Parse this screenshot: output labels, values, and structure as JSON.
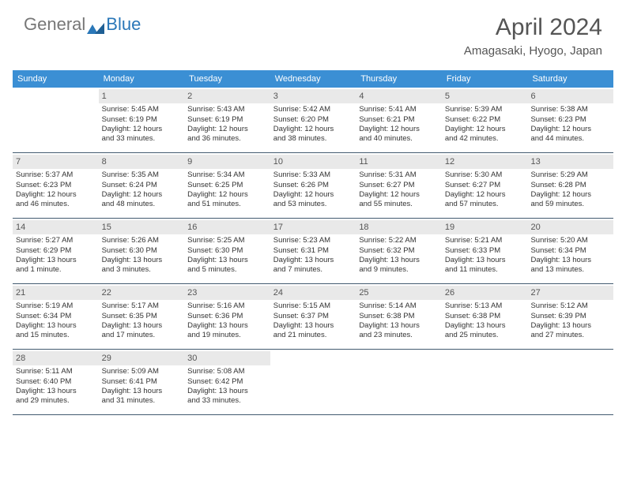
{
  "logo": {
    "part1": "General",
    "part2": "Blue"
  },
  "title": "April 2024",
  "location": "Amagasaki, Hyogo, Japan",
  "colors": {
    "header_bg": "#3b8fd4",
    "daynum_bg": "#e9e9e9",
    "row_border": "#425a70",
    "logo_accent": "#2a77b8"
  },
  "dow": [
    "Sunday",
    "Monday",
    "Tuesday",
    "Wednesday",
    "Thursday",
    "Friday",
    "Saturday"
  ],
  "weeks": [
    [
      null,
      {
        "n": "1",
        "sr": "Sunrise: 5:45 AM",
        "ss": "Sunset: 6:19 PM",
        "d1": "Daylight: 12 hours",
        "d2": "and 33 minutes."
      },
      {
        "n": "2",
        "sr": "Sunrise: 5:43 AM",
        "ss": "Sunset: 6:19 PM",
        "d1": "Daylight: 12 hours",
        "d2": "and 36 minutes."
      },
      {
        "n": "3",
        "sr": "Sunrise: 5:42 AM",
        "ss": "Sunset: 6:20 PM",
        "d1": "Daylight: 12 hours",
        "d2": "and 38 minutes."
      },
      {
        "n": "4",
        "sr": "Sunrise: 5:41 AM",
        "ss": "Sunset: 6:21 PM",
        "d1": "Daylight: 12 hours",
        "d2": "and 40 minutes."
      },
      {
        "n": "5",
        "sr": "Sunrise: 5:39 AM",
        "ss": "Sunset: 6:22 PM",
        "d1": "Daylight: 12 hours",
        "d2": "and 42 minutes."
      },
      {
        "n": "6",
        "sr": "Sunrise: 5:38 AM",
        "ss": "Sunset: 6:23 PM",
        "d1": "Daylight: 12 hours",
        "d2": "and 44 minutes."
      }
    ],
    [
      {
        "n": "7",
        "sr": "Sunrise: 5:37 AM",
        "ss": "Sunset: 6:23 PM",
        "d1": "Daylight: 12 hours",
        "d2": "and 46 minutes."
      },
      {
        "n": "8",
        "sr": "Sunrise: 5:35 AM",
        "ss": "Sunset: 6:24 PM",
        "d1": "Daylight: 12 hours",
        "d2": "and 48 minutes."
      },
      {
        "n": "9",
        "sr": "Sunrise: 5:34 AM",
        "ss": "Sunset: 6:25 PM",
        "d1": "Daylight: 12 hours",
        "d2": "and 51 minutes."
      },
      {
        "n": "10",
        "sr": "Sunrise: 5:33 AM",
        "ss": "Sunset: 6:26 PM",
        "d1": "Daylight: 12 hours",
        "d2": "and 53 minutes."
      },
      {
        "n": "11",
        "sr": "Sunrise: 5:31 AM",
        "ss": "Sunset: 6:27 PM",
        "d1": "Daylight: 12 hours",
        "d2": "and 55 minutes."
      },
      {
        "n": "12",
        "sr": "Sunrise: 5:30 AM",
        "ss": "Sunset: 6:27 PM",
        "d1": "Daylight: 12 hours",
        "d2": "and 57 minutes."
      },
      {
        "n": "13",
        "sr": "Sunrise: 5:29 AM",
        "ss": "Sunset: 6:28 PM",
        "d1": "Daylight: 12 hours",
        "d2": "and 59 minutes."
      }
    ],
    [
      {
        "n": "14",
        "sr": "Sunrise: 5:27 AM",
        "ss": "Sunset: 6:29 PM",
        "d1": "Daylight: 13 hours",
        "d2": "and 1 minute."
      },
      {
        "n": "15",
        "sr": "Sunrise: 5:26 AM",
        "ss": "Sunset: 6:30 PM",
        "d1": "Daylight: 13 hours",
        "d2": "and 3 minutes."
      },
      {
        "n": "16",
        "sr": "Sunrise: 5:25 AM",
        "ss": "Sunset: 6:30 PM",
        "d1": "Daylight: 13 hours",
        "d2": "and 5 minutes."
      },
      {
        "n": "17",
        "sr": "Sunrise: 5:23 AM",
        "ss": "Sunset: 6:31 PM",
        "d1": "Daylight: 13 hours",
        "d2": "and 7 minutes."
      },
      {
        "n": "18",
        "sr": "Sunrise: 5:22 AM",
        "ss": "Sunset: 6:32 PM",
        "d1": "Daylight: 13 hours",
        "d2": "and 9 minutes."
      },
      {
        "n": "19",
        "sr": "Sunrise: 5:21 AM",
        "ss": "Sunset: 6:33 PM",
        "d1": "Daylight: 13 hours",
        "d2": "and 11 minutes."
      },
      {
        "n": "20",
        "sr": "Sunrise: 5:20 AM",
        "ss": "Sunset: 6:34 PM",
        "d1": "Daylight: 13 hours",
        "d2": "and 13 minutes."
      }
    ],
    [
      {
        "n": "21",
        "sr": "Sunrise: 5:19 AM",
        "ss": "Sunset: 6:34 PM",
        "d1": "Daylight: 13 hours",
        "d2": "and 15 minutes."
      },
      {
        "n": "22",
        "sr": "Sunrise: 5:17 AM",
        "ss": "Sunset: 6:35 PM",
        "d1": "Daylight: 13 hours",
        "d2": "and 17 minutes."
      },
      {
        "n": "23",
        "sr": "Sunrise: 5:16 AM",
        "ss": "Sunset: 6:36 PM",
        "d1": "Daylight: 13 hours",
        "d2": "and 19 minutes."
      },
      {
        "n": "24",
        "sr": "Sunrise: 5:15 AM",
        "ss": "Sunset: 6:37 PM",
        "d1": "Daylight: 13 hours",
        "d2": "and 21 minutes."
      },
      {
        "n": "25",
        "sr": "Sunrise: 5:14 AM",
        "ss": "Sunset: 6:38 PM",
        "d1": "Daylight: 13 hours",
        "d2": "and 23 minutes."
      },
      {
        "n": "26",
        "sr": "Sunrise: 5:13 AM",
        "ss": "Sunset: 6:38 PM",
        "d1": "Daylight: 13 hours",
        "d2": "and 25 minutes."
      },
      {
        "n": "27",
        "sr": "Sunrise: 5:12 AM",
        "ss": "Sunset: 6:39 PM",
        "d1": "Daylight: 13 hours",
        "d2": "and 27 minutes."
      }
    ],
    [
      {
        "n": "28",
        "sr": "Sunrise: 5:11 AM",
        "ss": "Sunset: 6:40 PM",
        "d1": "Daylight: 13 hours",
        "d2": "and 29 minutes."
      },
      {
        "n": "29",
        "sr": "Sunrise: 5:09 AM",
        "ss": "Sunset: 6:41 PM",
        "d1": "Daylight: 13 hours",
        "d2": "and 31 minutes."
      },
      {
        "n": "30",
        "sr": "Sunrise: 5:08 AM",
        "ss": "Sunset: 6:42 PM",
        "d1": "Daylight: 13 hours",
        "d2": "and 33 minutes."
      },
      null,
      null,
      null,
      null
    ]
  ]
}
